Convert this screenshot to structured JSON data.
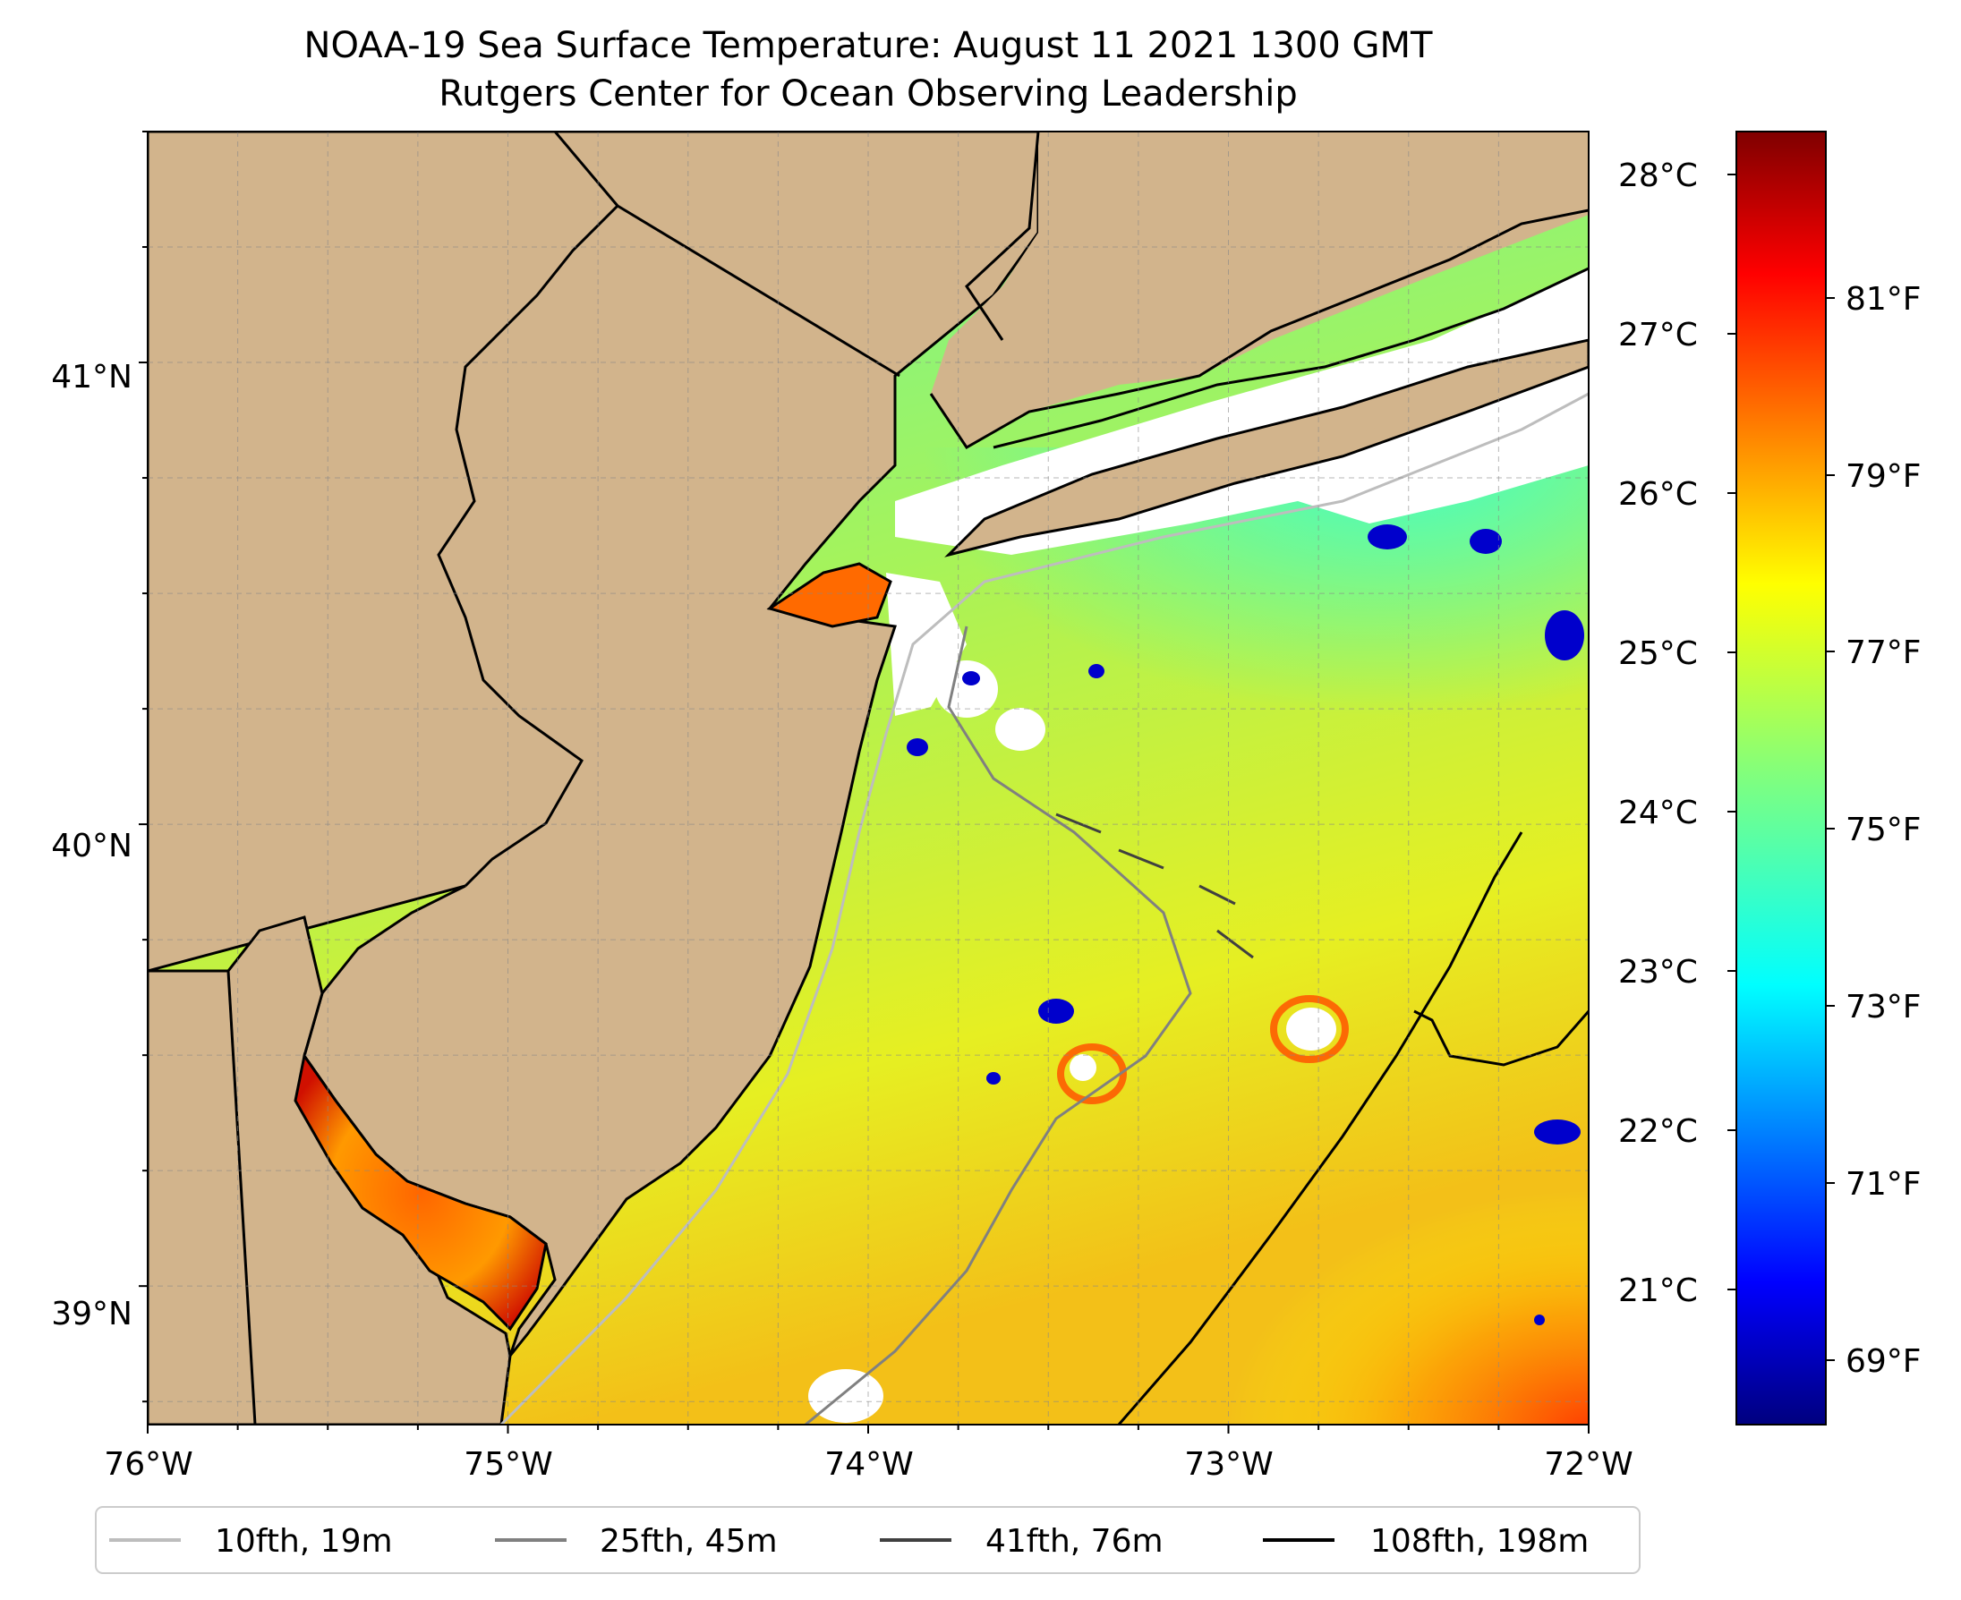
{
  "figure": {
    "title_line1": "NOAA-19 Sea Surface Temperature: August 11 2021 1300 GMT",
    "title_line2": "Rutgers Center for Ocean Observing Leadership"
  },
  "map": {
    "lon_range": [
      -76,
      -72
    ],
    "lat_range": [
      38.7,
      41.5
    ],
    "lon_ticks": [
      "76°W",
      "75°W",
      "74°W",
      "73°W",
      "72°W"
    ],
    "lat_ticks": [
      "41°N",
      "40°N",
      "39°N"
    ],
    "land_color": "#d2b48c",
    "gridlines": true
  },
  "colorbar": {
    "celsius_ticks": [
      "28°C",
      "27°C",
      "26°C",
      "25°C",
      "24°C",
      "23°C",
      "22°C",
      "21°C"
    ],
    "fahrenheit_ticks": [
      "81°F",
      "79°F",
      "77°F",
      "75°F",
      "73°F",
      "71°F",
      "69°F"
    ],
    "colormap": "jet",
    "range_c": [
      20.2,
      28.3
    ]
  },
  "legend": {
    "position": "bottom",
    "items": [
      {
        "label": "10fth, 19m",
        "color": "#bdbdbd"
      },
      {
        "label": "25fth, 45m",
        "color": "#808080"
      },
      {
        "label": "41fth, 76m",
        "color": "#404040"
      },
      {
        "label": "108fth, 198m",
        "color": "#000000"
      }
    ]
  }
}
